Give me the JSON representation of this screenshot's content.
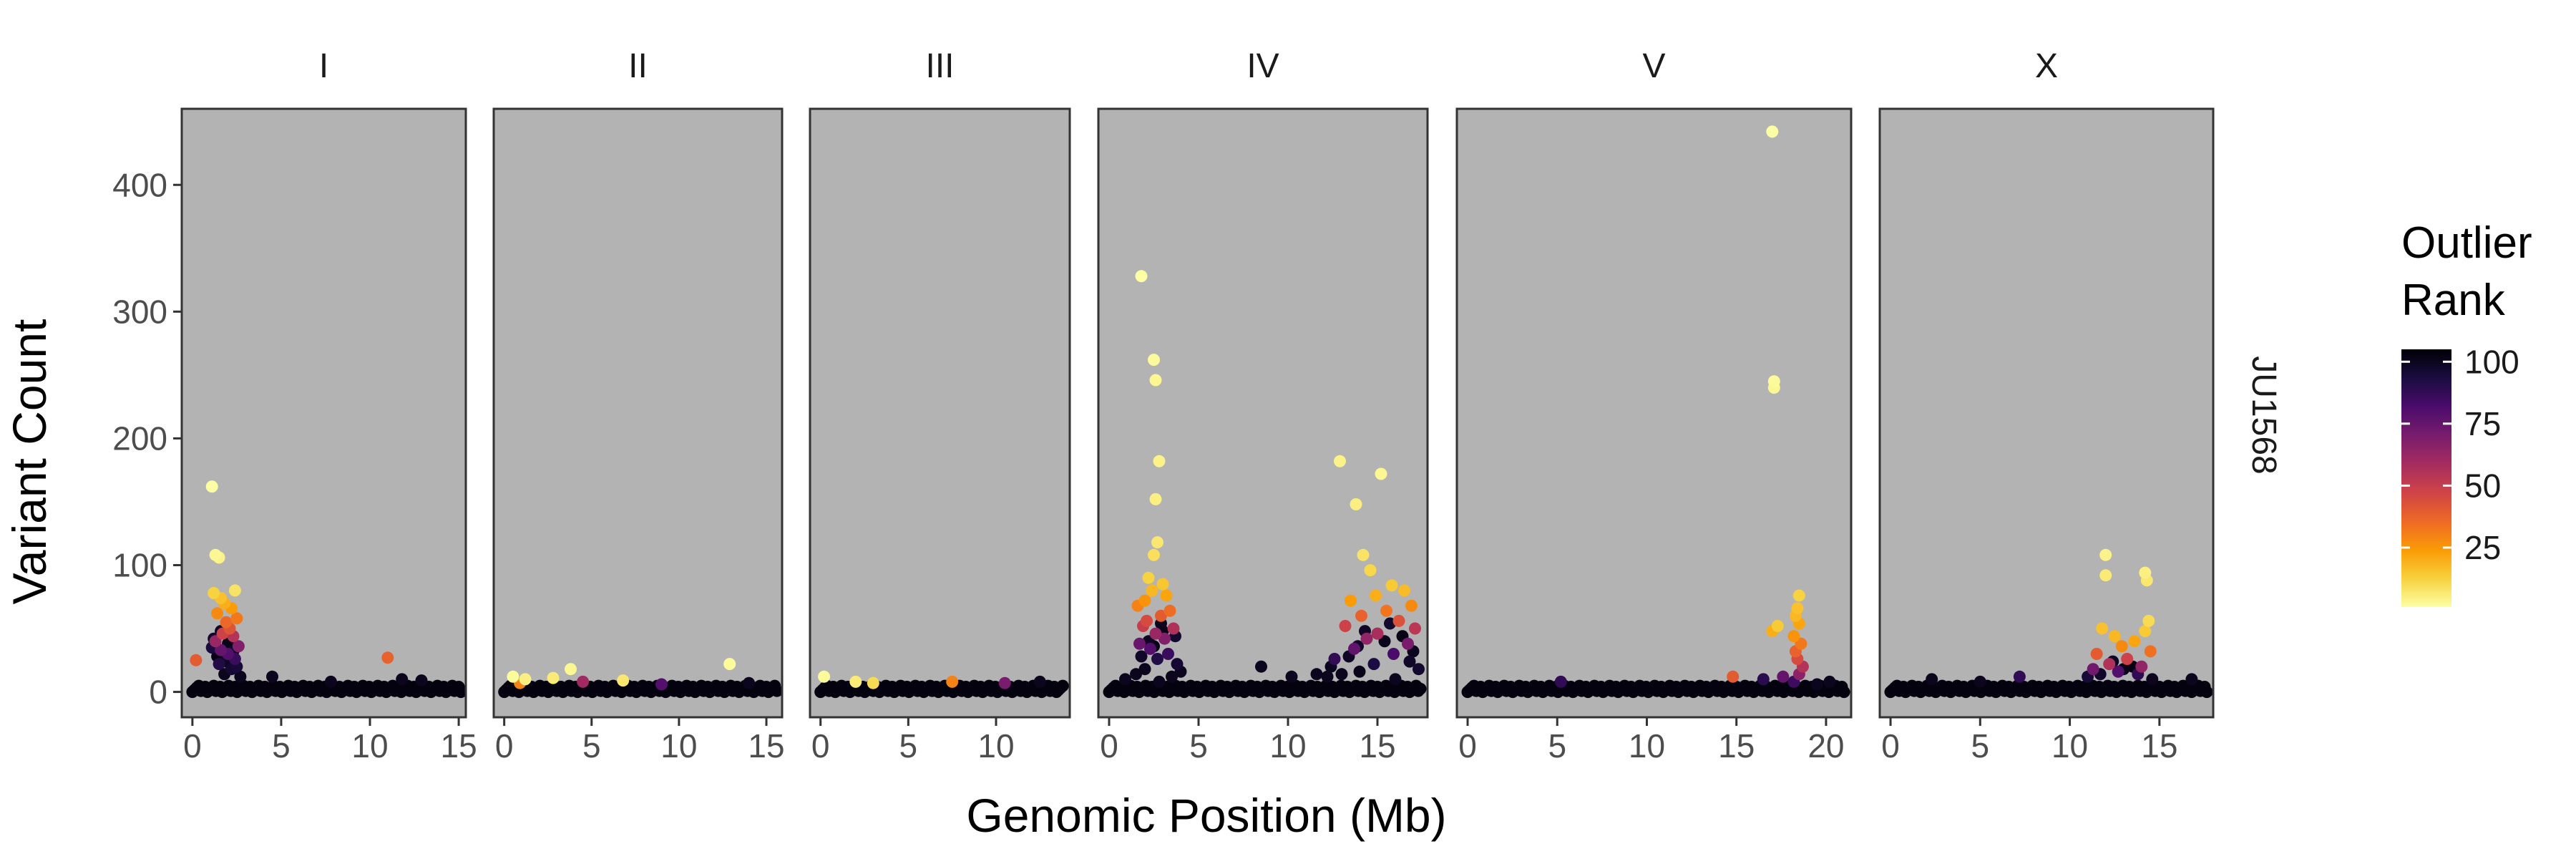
{
  "chart_data": {
    "type": "scatter",
    "xlabel": "Genomic Position (Mb)",
    "ylabel": "Variant Count",
    "ylim": [
      -20,
      460
    ],
    "y_ticks": [
      0,
      100,
      200,
      300,
      400
    ],
    "strip_label": "JU1568",
    "grid": false,
    "panel_background": "#b3b3b3",
    "legend": {
      "title_lines": [
        "Outlier",
        "Rank"
      ],
      "placement": "right",
      "ticks": [
        100,
        75,
        50,
        25
      ],
      "range": [
        1,
        105
      ],
      "colormap": "inferno-reversed",
      "stops": [
        "#000004",
        "#1b0c41",
        "#4a0c6b",
        "#781c6d",
        "#a52c60",
        "#cf4446",
        "#ed6925",
        "#fb9b06",
        "#f7d13d",
        "#fcffa4"
      ]
    },
    "facets": [
      {
        "name": "I",
        "xlim": [
          -0.6,
          15.4
        ],
        "x_ticks": [
          0,
          5,
          10,
          15
        ],
        "baseline": {
          "start": 0,
          "end": 15.2,
          "step": 0.12,
          "rank": 103
        },
        "points": [
          [
            0.2,
            25,
            40
          ],
          [
            1.1,
            162,
            1
          ],
          [
            1.3,
            108,
            3
          ],
          [
            1.5,
            106,
            4
          ],
          [
            1.2,
            78,
            12
          ],
          [
            1.6,
            74,
            16
          ],
          [
            2.4,
            80,
            8
          ],
          [
            1.8,
            70,
            20
          ],
          [
            2.2,
            66,
            24
          ],
          [
            1.4,
            62,
            28
          ],
          [
            2.5,
            58,
            32
          ],
          [
            1.9,
            55,
            36
          ],
          [
            2.1,
            50,
            42
          ],
          [
            1.7,
            46,
            48
          ],
          [
            2.3,
            44,
            55
          ],
          [
            1.3,
            40,
            62
          ],
          [
            2.6,
            36,
            68
          ],
          [
            1.6,
            33,
            75
          ],
          [
            2.0,
            30,
            80
          ],
          [
            2.4,
            26,
            86
          ],
          [
            1.5,
            22,
            92
          ],
          [
            2.2,
            18,
            96
          ],
          [
            1.8,
            14,
            100
          ],
          [
            1.2,
            42,
            97
          ],
          [
            1.6,
            48,
            99
          ],
          [
            2.0,
            38,
            101
          ],
          [
            2.3,
            32,
            98
          ],
          [
            1.4,
            28,
            102
          ],
          [
            2.5,
            20,
            95
          ],
          [
            2.7,
            12,
            100
          ],
          [
            1.1,
            35,
            94
          ],
          [
            1.9,
            24,
            99
          ],
          [
            11.0,
            27,
            38
          ],
          [
            4.5,
            12,
            100
          ],
          [
            7.8,
            8,
            100
          ],
          [
            11.8,
            10,
            100
          ],
          [
            12.9,
            9,
            100
          ]
        ]
      },
      {
        "name": "II",
        "xlim": [
          -0.6,
          15.9
        ],
        "x_ticks": [
          0,
          5,
          10,
          15
        ],
        "baseline": {
          "start": 0,
          "end": 15.6,
          "step": 0.12,
          "rank": 103
        },
        "points": [
          [
            0.5,
            12,
            2
          ],
          [
            1.2,
            10,
            5
          ],
          [
            2.8,
            11,
            6
          ],
          [
            3.8,
            18,
            3
          ],
          [
            6.8,
            9,
            7
          ],
          [
            12.9,
            22,
            2
          ],
          [
            0.9,
            7,
            30
          ],
          [
            4.5,
            8,
            60
          ],
          [
            9.0,
            6,
            80
          ],
          [
            14.0,
            7,
            100
          ]
        ]
      },
      {
        "name": "III",
        "xlim": [
          -0.6,
          14.2
        ],
        "x_ticks": [
          0,
          5,
          10
        ],
        "baseline": {
          "start": 0,
          "end": 13.9,
          "step": 0.12,
          "rank": 103
        },
        "points": [
          [
            0.2,
            12,
            2
          ],
          [
            2.0,
            8,
            6
          ],
          [
            3.0,
            7,
            10
          ],
          [
            7.5,
            8,
            30
          ],
          [
            10.5,
            7,
            70
          ],
          [
            12.5,
            8,
            100
          ]
        ]
      },
      {
        "name": "IV",
        "xlim": [
          -0.6,
          17.8
        ],
        "x_ticks": [
          0,
          5,
          10,
          15
        ],
        "baseline": {
          "start": 0,
          "end": 17.5,
          "step": 0.12,
          "rank": 103
        },
        "points": [
          [
            1.8,
            328,
            1
          ],
          [
            2.5,
            262,
            2
          ],
          [
            2.6,
            246,
            3
          ],
          [
            2.8,
            182,
            4
          ],
          [
            2.6,
            152,
            5
          ],
          [
            2.7,
            118,
            7
          ],
          [
            2.5,
            108,
            9
          ],
          [
            2.2,
            90,
            12
          ],
          [
            3.0,
            85,
            15
          ],
          [
            2.4,
            80,
            18
          ],
          [
            3.2,
            76,
            22
          ],
          [
            2.0,
            72,
            26
          ],
          [
            1.6,
            68,
            30
          ],
          [
            3.4,
            64,
            35
          ],
          [
            2.9,
            60,
            40
          ],
          [
            2.1,
            56,
            45
          ],
          [
            1.9,
            52,
            50
          ],
          [
            3.6,
            50,
            56
          ],
          [
            2.6,
            46,
            62
          ],
          [
            3.1,
            42,
            68
          ],
          [
            1.7,
            38,
            74
          ],
          [
            2.3,
            34,
            80
          ],
          [
            3.3,
            30,
            86
          ],
          [
            2.7,
            26,
            92
          ],
          [
            3.8,
            22,
            96
          ],
          [
            2.0,
            18,
            100
          ],
          [
            1.5,
            14,
            100
          ],
          [
            3.5,
            12,
            100
          ],
          [
            2.8,
            8,
            100
          ],
          [
            4.0,
            16,
            100
          ],
          [
            2.2,
            40,
            99
          ],
          [
            3.0,
            48,
            101
          ],
          [
            1.8,
            28,
            98
          ],
          [
            2.5,
            36,
            102
          ],
          [
            3.7,
            44,
            97
          ],
          [
            2.9,
            54,
            100
          ],
          [
            0.9,
            10,
            100
          ],
          [
            8.5,
            20,
            100
          ],
          [
            10.2,
            12,
            100
          ],
          [
            11.6,
            14,
            100
          ],
          [
            12.9,
            182,
            4
          ],
          [
            13.8,
            148,
            5
          ],
          [
            15.2,
            172,
            3
          ],
          [
            14.2,
            108,
            8
          ],
          [
            14.6,
            96,
            11
          ],
          [
            15.8,
            84,
            14
          ],
          [
            16.5,
            80,
            17
          ],
          [
            14.9,
            76,
            20
          ],
          [
            13.5,
            72,
            24
          ],
          [
            16.9,
            68,
            28
          ],
          [
            15.5,
            64,
            33
          ],
          [
            14.1,
            60,
            38
          ],
          [
            16.2,
            56,
            43
          ],
          [
            13.2,
            52,
            48
          ],
          [
            17.1,
            50,
            53
          ],
          [
            15.0,
            46,
            58
          ],
          [
            14.4,
            42,
            64
          ],
          [
            16.7,
            38,
            70
          ],
          [
            13.7,
            34,
            76
          ],
          [
            15.9,
            30,
            82
          ],
          [
            12.6,
            26,
            88
          ],
          [
            14.8,
            22,
            93
          ],
          [
            17.3,
            18,
            97
          ],
          [
            13.0,
            14,
            100
          ],
          [
            16.0,
            10,
            100
          ],
          [
            14.3,
            48,
            99
          ],
          [
            15.4,
            40,
            101
          ],
          [
            13.9,
            36,
            98
          ],
          [
            16.4,
            44,
            102
          ],
          [
            12.4,
            20,
            100
          ],
          [
            15.7,
            54,
            97
          ],
          [
            17.0,
            32,
            100
          ],
          [
            13.4,
            28,
            99
          ],
          [
            14.0,
            16,
            101
          ],
          [
            16.8,
            24,
            98
          ],
          [
            12.2,
            12,
            100
          ]
        ]
      },
      {
        "name": "V",
        "xlim": [
          -0.6,
          21.4
        ],
        "x_ticks": [
          0,
          5,
          10,
          15,
          20
        ],
        "baseline": {
          "start": 0,
          "end": 21.0,
          "step": 0.12,
          "rank": 103
        },
        "points": [
          [
            17.0,
            442,
            1
          ],
          [
            17.1,
            245,
            2
          ],
          [
            17.1,
            240,
            3
          ],
          [
            18.5,
            76,
            12
          ],
          [
            18.4,
            66,
            16
          ],
          [
            18.3,
            60,
            18
          ],
          [
            17.3,
            52,
            14
          ],
          [
            17.0,
            48,
            20
          ],
          [
            18.5,
            54,
            22
          ],
          [
            18.2,
            44,
            26
          ],
          [
            18.6,
            38,
            32
          ],
          [
            18.3,
            32,
            38
          ],
          [
            18.4,
            26,
            45
          ],
          [
            18.7,
            20,
            55
          ],
          [
            18.5,
            14,
            65
          ],
          [
            17.6,
            12,
            75
          ],
          [
            18.2,
            8,
            85
          ],
          [
            16.5,
            10,
            90
          ],
          [
            14.8,
            12,
            40
          ],
          [
            5.2,
            8,
            88
          ],
          [
            19.5,
            6,
            100
          ],
          [
            20.2,
            8,
            100
          ]
        ]
      },
      {
        "name": "X",
        "xlim": [
          -0.6,
          18.0
        ],
        "x_ticks": [
          0,
          5,
          10,
          15
        ],
        "baseline": {
          "start": 0,
          "end": 17.7,
          "step": 0.12,
          "rank": 103
        },
        "points": [
          [
            12.0,
            108,
            4
          ],
          [
            12.0,
            92,
            6
          ],
          [
            14.2,
            94,
            5
          ],
          [
            14.3,
            88,
            7
          ],
          [
            14.4,
            56,
            10
          ],
          [
            14.2,
            48,
            14
          ],
          [
            12.5,
            44,
            18
          ],
          [
            11.8,
            50,
            16
          ],
          [
            13.6,
            40,
            22
          ],
          [
            12.9,
            36,
            28
          ],
          [
            14.5,
            32,
            34
          ],
          [
            11.5,
            30,
            40
          ],
          [
            13.2,
            26,
            48
          ],
          [
            12.2,
            22,
            56
          ],
          [
            14.0,
            20,
            64
          ],
          [
            11.3,
            18,
            72
          ],
          [
            12.7,
            16,
            80
          ],
          [
            13.8,
            14,
            88
          ],
          [
            11.0,
            12,
            95
          ],
          [
            14.6,
            10,
            100
          ],
          [
            12.4,
            24,
            99
          ],
          [
            13.0,
            18,
            101
          ],
          [
            11.7,
            14,
            98
          ],
          [
            13.5,
            20,
            102
          ],
          [
            7.2,
            12,
            88
          ],
          [
            2.3,
            10,
            100
          ],
          [
            5.0,
            8,
            100
          ],
          [
            16.8,
            10,
            100
          ]
        ]
      }
    ]
  }
}
